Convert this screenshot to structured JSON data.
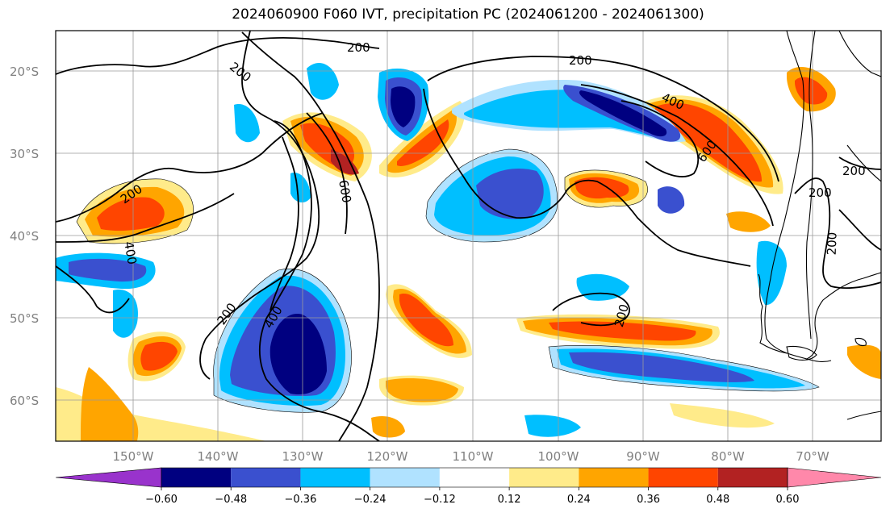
{
  "title": "2024060900 F060 IVT, precipitation PC (2024061200 - 2024061300)",
  "map": {
    "lon_range": [
      -160,
      -63
    ],
    "lat_range": [
      -65,
      -15
    ],
    "lat_ticks": [
      {
        "value": -20,
        "label": "20°S"
      },
      {
        "value": -30,
        "label": "30°S"
      },
      {
        "value": -40,
        "label": "40°S"
      },
      {
        "value": -50,
        "label": "50°S"
      },
      {
        "value": -60,
        "label": "60°S"
      }
    ],
    "lon_ticks": [
      {
        "value": -150,
        "label": "150°W"
      },
      {
        "value": -140,
        "label": "140°W"
      },
      {
        "value": -130,
        "label": "130°W"
      },
      {
        "value": -120,
        "label": "120°W"
      },
      {
        "value": -110,
        "label": "110°W"
      },
      {
        "value": -100,
        "label": "100°W"
      },
      {
        "value": -90,
        "label": "90°W"
      },
      {
        "value": -80,
        "label": "80°W"
      },
      {
        "value": -70,
        "label": "70°W"
      }
    ],
    "gridlines": true,
    "ivt_contour_labels": [
      "200",
      "200",
      "200",
      "200",
      "200",
      "200",
      "200",
      "200",
      "400",
      "400",
      "400",
      "600",
      "600",
      "200"
    ]
  },
  "colorbar": {
    "tick_labels": [
      "−0.60",
      "−0.48",
      "−0.36",
      "−0.24",
      "−0.12",
      "0.12",
      "0.24",
      "0.36",
      "0.48",
      "0.60"
    ],
    "colors": [
      "#9933cc",
      "#000080",
      "#3a50cf",
      "#00bfff",
      "#b0e2ff",
      "#ffffff",
      "#ffeb8a",
      "#ffa500",
      "#ff4500",
      "#b22222",
      "#ff88aa"
    ]
  }
}
